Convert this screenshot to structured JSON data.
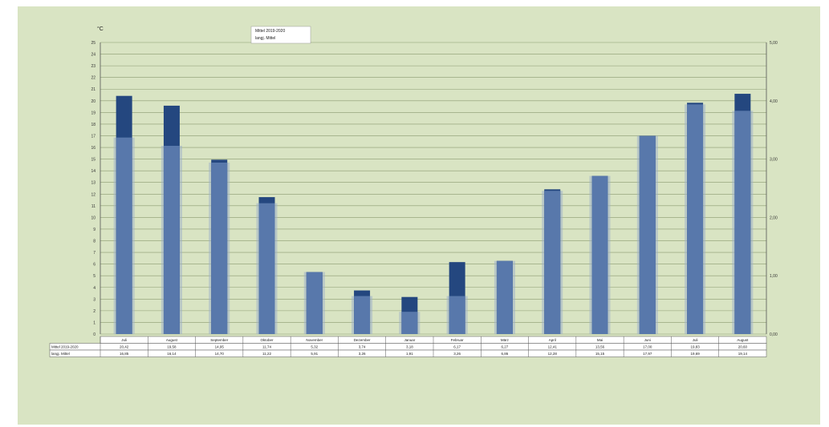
{
  "chart_data": {
    "type": "bar",
    "unit_label": "°C",
    "ylim": [
      0,
      25
    ],
    "y2lim": [
      0,
      5
    ],
    "yticks": [
      0,
      1,
      2,
      3,
      4,
      5,
      6,
      7,
      8,
      9,
      10,
      11,
      12,
      13,
      14,
      15,
      16,
      17,
      18,
      19,
      20,
      21,
      22,
      23,
      24,
      25
    ],
    "y2ticks": [
      "0,00",
      "1,00",
      "2,00",
      "3,00",
      "4,00",
      "5,00"
    ],
    "grid": true,
    "legend_position": "top-left",
    "categories": [
      "Juli",
      "August",
      "September",
      "Oktober",
      "November",
      "Dezember",
      "Januar",
      "Februar",
      "März",
      "April",
      "Mai",
      "Juni",
      "Juli",
      "August"
    ],
    "series": [
      {
        "name": "Mittel 2019-2020",
        "values": [
          20.42,
          19.58,
          14.95,
          11.74,
          5.32,
          3.74,
          3.18,
          6.17,
          6.27,
          12.41,
          13.56,
          17.0,
          19.83,
          20.6
        ],
        "color": "#24477f"
      },
      {
        "name": "langj. Mittel",
        "values": [
          16.85,
          16.14,
          14.7,
          11.22,
          5.91,
          3.26,
          1.91,
          3.26,
          6.86,
          12.28,
          15.15,
          17.97,
          19.69,
          19.14
        ],
        "color": "#5878ab"
      }
    ],
    "table": {
      "rows": [
        {
          "label": "Mittel 2019-2020",
          "cells": [
            "20,42",
            "19,58",
            "14,95",
            "11,74",
            "5,32",
            "3,74",
            "3,18",
            "6,17",
            "6,27",
            "12,41",
            "13,56",
            "17,00",
            "19,83",
            "20,60"
          ]
        },
        {
          "label": "langj. Mittel",
          "cells": [
            "16,85",
            "16,14",
            "14,70",
            "11,22",
            "5,91",
            "3,26",
            "1,91",
            "3,26",
            "6,86",
            "12,28",
            "15,15",
            "17,97",
            "19,69",
            "19,14"
          ]
        }
      ]
    },
    "legend": [
      "Mittel 2019-2020",
      "langj. Mittel"
    ]
  }
}
